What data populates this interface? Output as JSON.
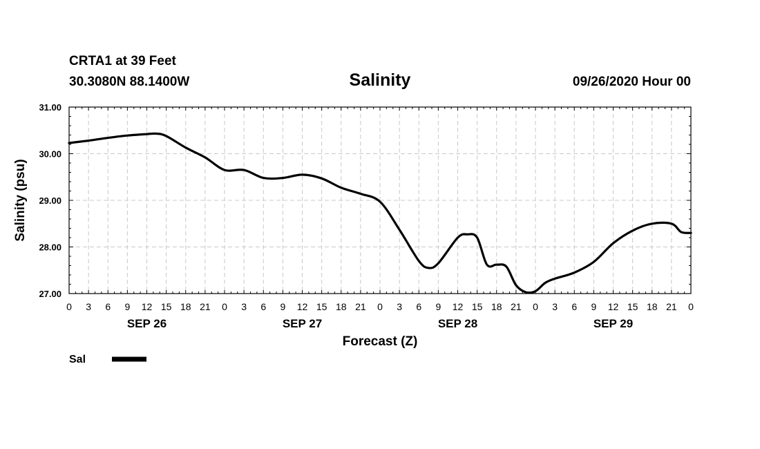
{
  "header": {
    "station": "CRTA1 at 39 Feet",
    "location": "30.3080N 88.1400W",
    "run": "09/26/2020 Hour 00"
  },
  "chart_data": {
    "type": "line",
    "title": "Salinity",
    "xlabel": "Forecast (Z)",
    "ylabel": "Salinity (psu)",
    "xlim": [
      0,
      96
    ],
    "ylim": [
      27.0,
      31.0
    ],
    "grid": true,
    "y_ticks": [
      "27.00",
      "28.00",
      "29.00",
      "30.00",
      "31.00"
    ],
    "y_tick_values": [
      27,
      28,
      29,
      30,
      31
    ],
    "x_tick_labels": [
      "0",
      "3",
      "6",
      "9",
      "12",
      "15",
      "18",
      "21",
      "0",
      "3",
      "6",
      "9",
      "12",
      "15",
      "18",
      "21",
      "0",
      "3",
      "6",
      "9",
      "12",
      "15",
      "18",
      "21",
      "0",
      "3",
      "6",
      "9",
      "12",
      "15",
      "18",
      "21",
      "0"
    ],
    "date_labels": [
      {
        "label": "SEP 26",
        "hour": 12
      },
      {
        "label": "SEP 27",
        "hour": 36
      },
      {
        "label": "SEP 28",
        "hour": 60
      },
      {
        "label": "SEP 29",
        "hour": 84
      }
    ],
    "series": [
      {
        "name": "Sal",
        "color": "#000000",
        "x": [
          0,
          3,
          6,
          9,
          12,
          13.5,
          15,
          18,
          21,
          24,
          27,
          30,
          33,
          36,
          39,
          42,
          45,
          48,
          51,
          54,
          55.5,
          57,
          60,
          61.5,
          63,
          64.5,
          66,
          67.5,
          69,
          70.5,
          72,
          73.5,
          75,
          78,
          81,
          84,
          87,
          90,
          93,
          94.5,
          96
        ],
        "values": [
          30.23,
          30.28,
          30.34,
          30.39,
          30.42,
          30.43,
          30.38,
          30.13,
          29.92,
          29.65,
          29.65,
          29.48,
          29.48,
          29.55,
          29.47,
          29.27,
          29.14,
          28.97,
          28.37,
          27.7,
          27.55,
          27.65,
          28.2,
          28.27,
          28.2,
          27.62,
          27.62,
          27.58,
          27.18,
          27.03,
          27.05,
          27.23,
          27.32,
          27.45,
          27.68,
          28.08,
          28.35,
          28.5,
          28.5,
          28.32,
          28.3
        ]
      }
    ],
    "legend": {
      "placement": "bottom-left",
      "entries": [
        "Sal"
      ]
    }
  }
}
